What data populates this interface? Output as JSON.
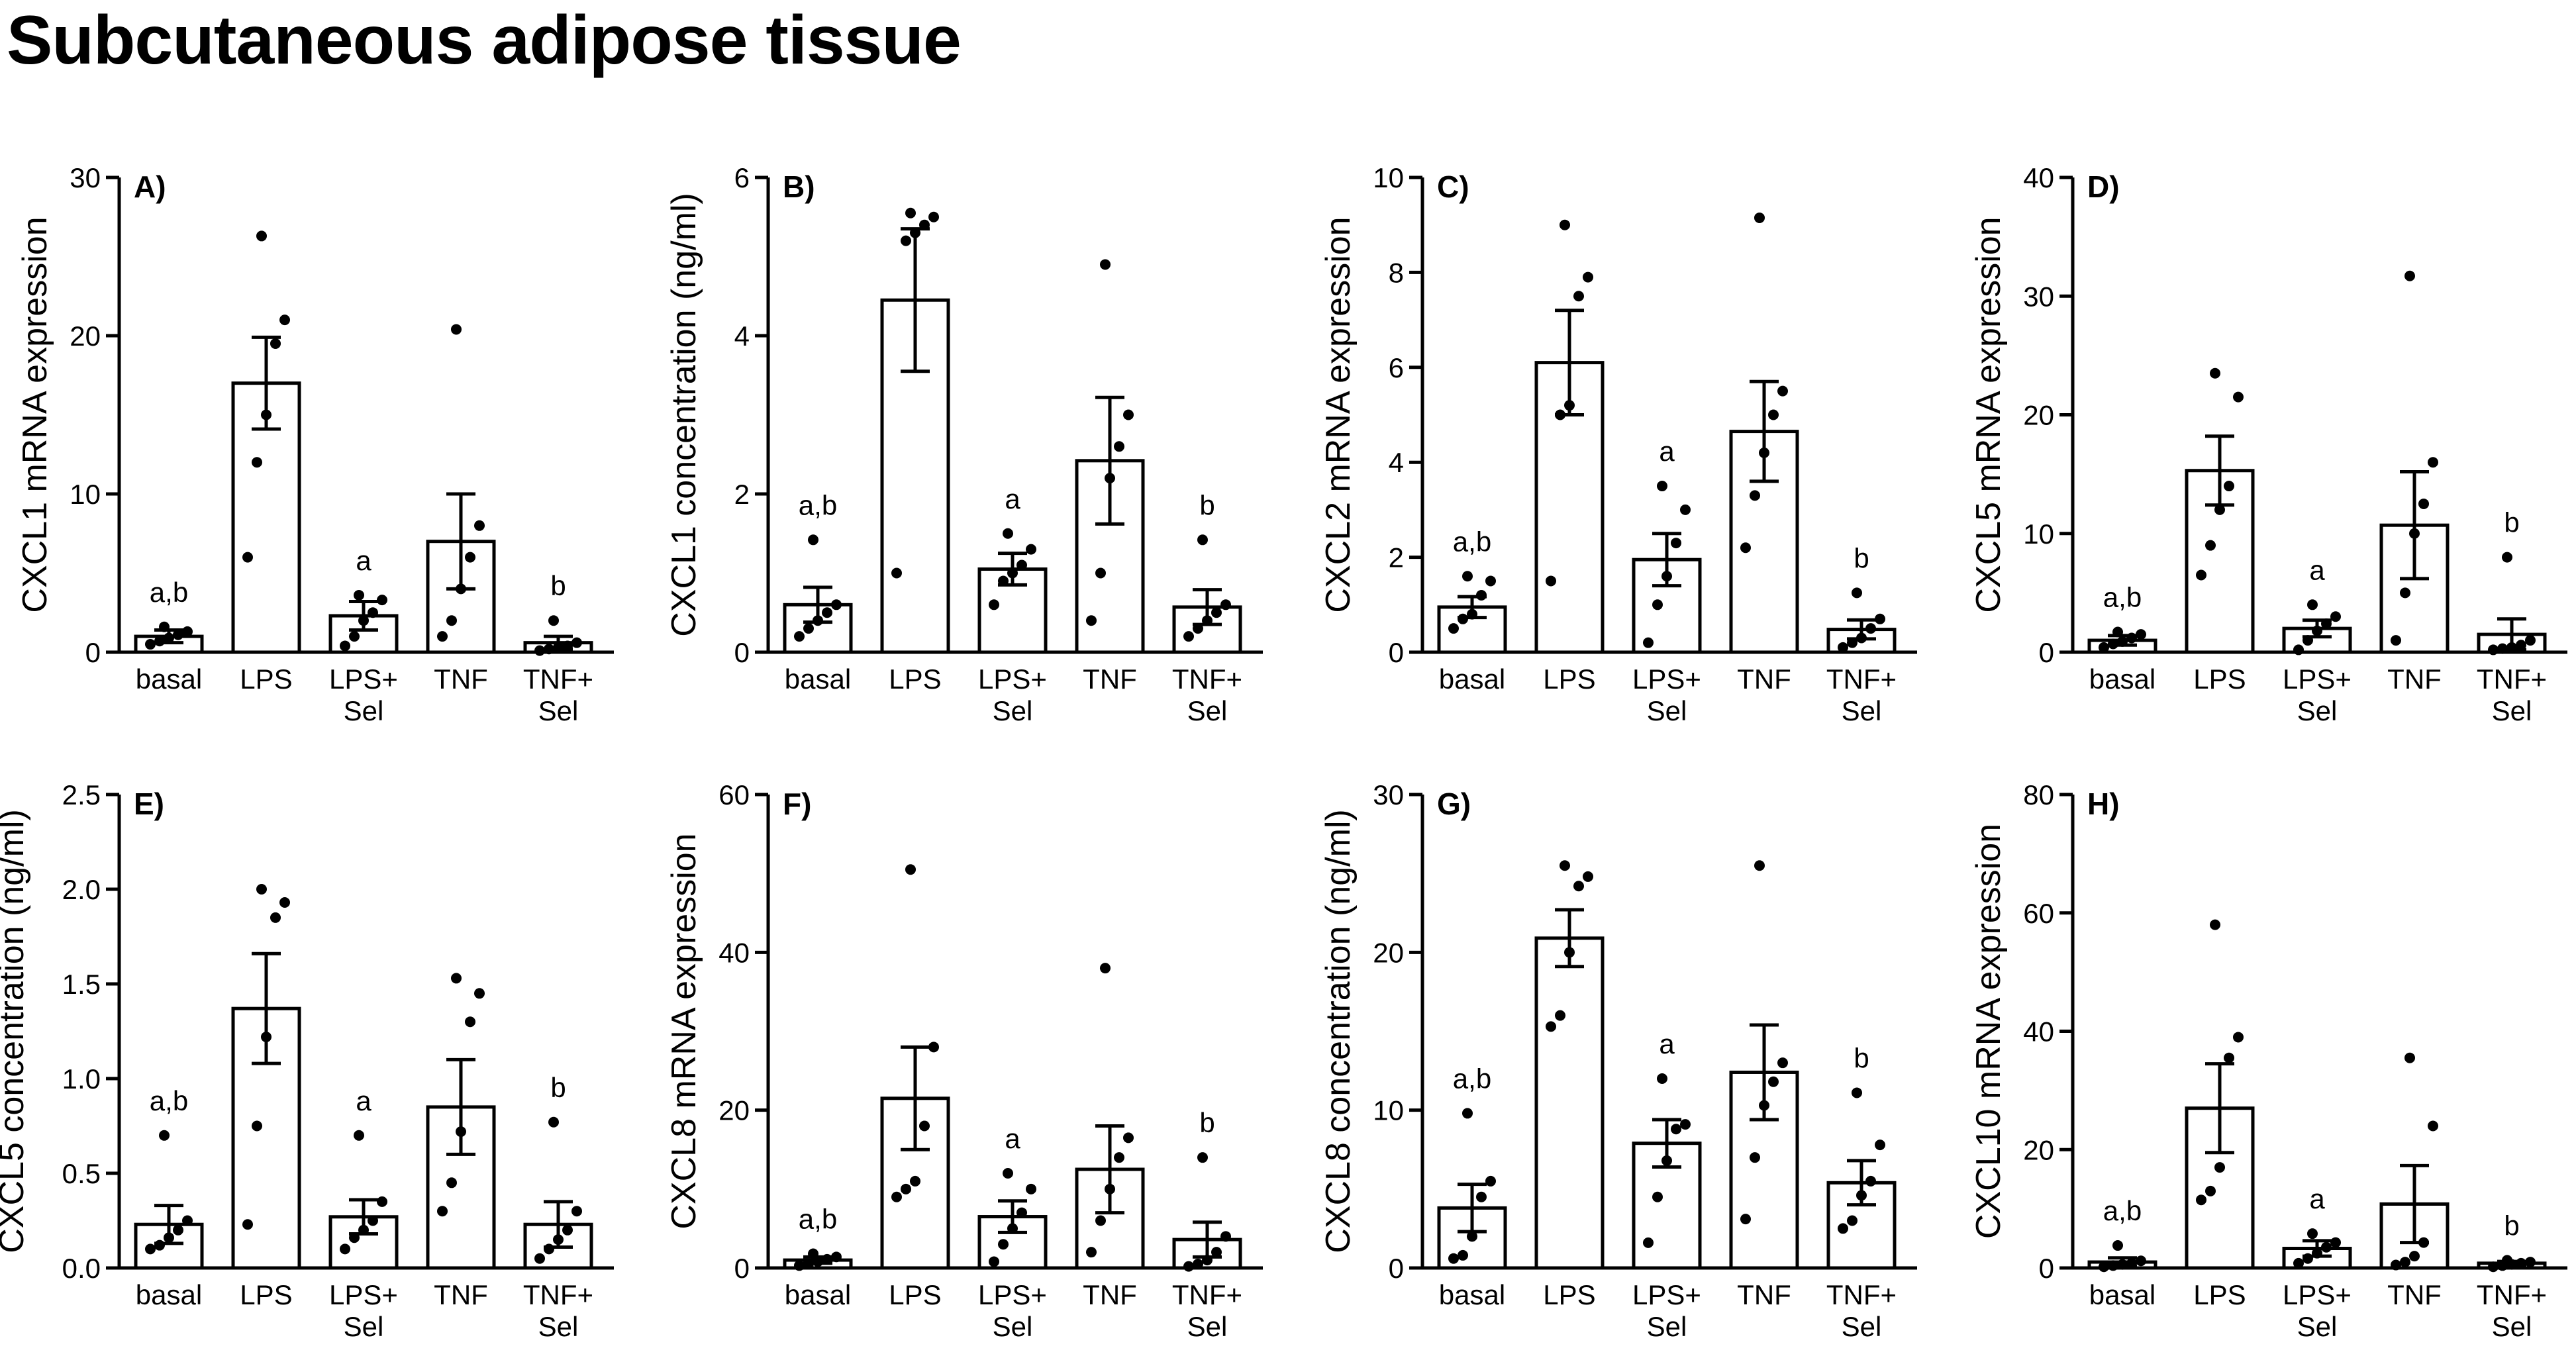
{
  "page_title": "Subcutaneous adipose tissue",
  "chart_data": [
    {
      "type": "bar",
      "panel_label": "A)",
      "ylabel": "CXCL1 mRNA expression",
      "ylim": [
        0,
        30
      ],
      "yticks": [
        "0",
        "10",
        "20",
        "30"
      ],
      "ytick_values": [
        0,
        10,
        20,
        30
      ],
      "categories": [
        "basal",
        "LPS",
        "LPS+\nSel",
        "TNF",
        "TNF+\nSel"
      ],
      "values": [
        1.0,
        17.0,
        2.3,
        7.0,
        0.6
      ],
      "sem": [
        0.4,
        2.9,
        0.9,
        3.0,
        0.4
      ],
      "points": [
        [
          0.5,
          0.7,
          0.9,
          1.1,
          1.3,
          1.6
        ],
        [
          6,
          12,
          15,
          19.5,
          21,
          26.3
        ],
        [
          0.4,
          1.0,
          2.0,
          2.5,
          3.3,
          3.6
        ],
        [
          1.0,
          2.0,
          4.0,
          6.0,
          8.0,
          20.4
        ],
        [
          0.1,
          0.2,
          0.3,
          0.4,
          0.6,
          2.0
        ]
      ],
      "annotations": [
        "a,b",
        "",
        "a",
        "",
        "b"
      ]
    },
    {
      "type": "bar",
      "panel_label": "B)",
      "ylabel": "CXCL1 concentration (ng/ml)",
      "ylim": [
        0,
        6
      ],
      "yticks": [
        "0",
        "2",
        "4",
        "6"
      ],
      "ytick_values": [
        0,
        2,
        4,
        6
      ],
      "categories": [
        "basal",
        "LPS",
        "LPS+\nSel",
        "TNF",
        "TNF+\nSel"
      ],
      "values": [
        0.6,
        4.45,
        1.05,
        2.42,
        0.57
      ],
      "sem": [
        0.22,
        0.9,
        0.2,
        0.8,
        0.22
      ],
      "points": [
        [
          0.2,
          0.3,
          0.4,
          0.5,
          0.6,
          1.42
        ],
        [
          1.0,
          5.2,
          5.3,
          5.4,
          5.5,
          5.55
        ],
        [
          0.6,
          0.9,
          1.0,
          1.1,
          1.3,
          1.5
        ],
        [
          0.4,
          1.0,
          2.2,
          2.6,
          3.0,
          4.9
        ],
        [
          0.2,
          0.3,
          0.4,
          0.5,
          0.6,
          1.42
        ]
      ],
      "annotations": [
        "a,b",
        "",
        "a",
        "",
        "b"
      ]
    },
    {
      "type": "bar",
      "panel_label": "C)",
      "ylabel": "CXCL2 mRNA expression",
      "ylim": [
        0,
        10
      ],
      "yticks": [
        "0",
        "2",
        "4",
        "6",
        "8",
        "10"
      ],
      "ytick_values": [
        0,
        2,
        4,
        6,
        8,
        10
      ],
      "categories": [
        "basal",
        "LPS",
        "LPS+\nSel",
        "TNF",
        "TNF+\nSel"
      ],
      "values": [
        0.95,
        6.1,
        1.95,
        4.65,
        0.48
      ],
      "sem": [
        0.22,
        1.1,
        0.55,
        1.05,
        0.2
      ],
      "points": [
        [
          0.5,
          0.7,
          0.8,
          1.2,
          1.5,
          1.6
        ],
        [
          1.5,
          5.0,
          5.2,
          7.5,
          7.9,
          9.0
        ],
        [
          0.2,
          1.0,
          1.6,
          2.3,
          3.0,
          3.5
        ],
        [
          2.2,
          3.3,
          4.2,
          5.0,
          5.5,
          9.15
        ],
        [
          0.1,
          0.2,
          0.3,
          0.5,
          0.7,
          1.25
        ]
      ],
      "annotations": [
        "a,b",
        "",
        "a",
        "",
        "b"
      ]
    },
    {
      "type": "bar",
      "panel_label": "D)",
      "ylabel": "CXCL5 mRNA expression",
      "ylim": [
        0,
        40
      ],
      "yticks": [
        "0",
        "10",
        "20",
        "30",
        "40"
      ],
      "ytick_values": [
        0,
        10,
        20,
        30,
        40
      ],
      "categories": [
        "basal",
        "LPS",
        "LPS+\nSel",
        "TNF",
        "TNF+\nSel"
      ],
      "values": [
        1.0,
        15.3,
        2.0,
        10.7,
        1.5
      ],
      "sem": [
        0.4,
        2.9,
        0.7,
        4.5,
        1.3
      ],
      "points": [
        [
          0.4,
          0.7,
          0.9,
          1.2,
          1.5,
          1.7
        ],
        [
          6.5,
          9,
          12,
          14,
          21.5,
          23.5
        ],
        [
          0.2,
          1.0,
          1.8,
          2.4,
          3.0,
          4.0
        ],
        [
          1.0,
          5.0,
          10.0,
          12.5,
          16.0,
          31.7
        ],
        [
          0.2,
          0.3,
          0.4,
          0.6,
          1.0,
          8.0
        ]
      ],
      "annotations": [
        "a,b",
        "",
        "a",
        "",
        "b"
      ]
    },
    {
      "type": "bar",
      "panel_label": "E)",
      "ylabel": "CXCL5 concentration (ng/ml)",
      "ylim": [
        0,
        2.5
      ],
      "yticks": [
        "0.0",
        "0.5",
        "1.0",
        "1.5",
        "2.0",
        "2.5"
      ],
      "ytick_values": [
        0,
        0.5,
        1.0,
        1.5,
        2.0,
        2.5
      ],
      "categories": [
        "basal",
        "LPS",
        "LPS+\nSel",
        "TNF",
        "TNF+\nSel"
      ],
      "values": [
        0.23,
        1.37,
        0.27,
        0.85,
        0.23
      ],
      "sem": [
        0.1,
        0.29,
        0.09,
        0.25,
        0.12
      ],
      "points": [
        [
          0.1,
          0.12,
          0.16,
          0.2,
          0.25,
          0.7
        ],
        [
          0.23,
          0.75,
          1.22,
          1.85,
          1.93,
          2.0
        ],
        [
          0.1,
          0.16,
          0.2,
          0.25,
          0.35,
          0.7
        ],
        [
          0.3,
          0.45,
          0.72,
          1.3,
          1.45,
          1.53
        ],
        [
          0.05,
          0.1,
          0.15,
          0.2,
          0.3,
          0.77
        ]
      ],
      "annotations": [
        "a,b",
        "",
        "a",
        "",
        "b"
      ]
    },
    {
      "type": "bar",
      "panel_label": "F)",
      "ylabel": "CXCL8 mRNA expression",
      "ylim": [
        0,
        60
      ],
      "yticks": [
        "0",
        "20",
        "40",
        "60"
      ],
      "ytick_values": [
        0,
        20,
        40,
        60
      ],
      "categories": [
        "basal",
        "LPS",
        "LPS+\nSel",
        "TNF",
        "TNF+\nSel"
      ],
      "values": [
        1.0,
        21.5,
        6.5,
        12.5,
        3.6
      ],
      "sem": [
        0.4,
        6.5,
        2.0,
        5.5,
        2.2
      ],
      "points": [
        [
          0.3,
          0.5,
          0.8,
          1.1,
          1.4,
          1.8
        ],
        [
          9,
          10,
          11,
          18,
          28,
          50.5
        ],
        [
          0.8,
          3.0,
          5.0,
          7.0,
          10,
          12
        ],
        [
          2.0,
          6.0,
          10.0,
          14.0,
          16.5,
          38
        ],
        [
          0.2,
          0.5,
          1.0,
          2.0,
          4.0,
          14
        ]
      ],
      "annotations": [
        "a,b",
        "",
        "a",
        "",
        "b"
      ]
    },
    {
      "type": "bar",
      "panel_label": "G)",
      "ylabel": "CXCL8 concentration (ng/ml)",
      "ylim": [
        0,
        30
      ],
      "yticks": [
        "0",
        "10",
        "20",
        "30"
      ],
      "ytick_values": [
        0,
        10,
        20,
        30
      ],
      "categories": [
        "basal",
        "LPS",
        "LPS+\nSel",
        "TNF",
        "TNF+\nSel"
      ],
      "values": [
        3.8,
        20.9,
        7.9,
        12.4,
        5.4
      ],
      "sem": [
        1.5,
        1.8,
        1.5,
        3.0,
        1.4
      ],
      "points": [
        [
          0.6,
          0.8,
          2.0,
          4.5,
          5.5,
          9.8
        ],
        [
          15.3,
          16.0,
          20.0,
          24.2,
          24.8,
          25.5
        ],
        [
          1.6,
          4.5,
          6.8,
          8.8,
          9.1,
          12.0
        ],
        [
          3.1,
          7.0,
          10.3,
          11.8,
          13.0,
          25.5
        ],
        [
          2.5,
          3.0,
          4.6,
          5.5,
          7.8,
          11.1
        ]
      ],
      "annotations": [
        "a,b",
        "",
        "a",
        "",
        "b"
      ]
    },
    {
      "type": "bar",
      "panel_label": "H)",
      "ylabel": "CXCL10 mRNA expression",
      "ylim": [
        0,
        80
      ],
      "yticks": [
        "0",
        "20",
        "40",
        "60",
        "80"
      ],
      "ytick_values": [
        0,
        20,
        40,
        60,
        80
      ],
      "categories": [
        "basal",
        "LPS",
        "LPS+\nSel",
        "TNF",
        "TNF+\nSel"
      ],
      "values": [
        1.0,
        27.0,
        3.3,
        10.8,
        0.8
      ],
      "sem": [
        0.7,
        7.5,
        1.3,
        6.5,
        0.3
      ],
      "points": [
        [
          0.2,
          0.4,
          0.6,
          0.8,
          1.2,
          3.8
        ],
        [
          11.5,
          13.0,
          17.0,
          35.5,
          39.0,
          58.0
        ],
        [
          0.8,
          1.6,
          2.5,
          3.5,
          4.3,
          5.8
        ],
        [
          0.5,
          1.0,
          2.0,
          4.3,
          24.0,
          35.5
        ],
        [
          0.2,
          0.4,
          0.6,
          0.8,
          1.0,
          1.3
        ]
      ],
      "annotations": [
        "a,b",
        "",
        "a",
        "",
        "b"
      ]
    }
  ]
}
